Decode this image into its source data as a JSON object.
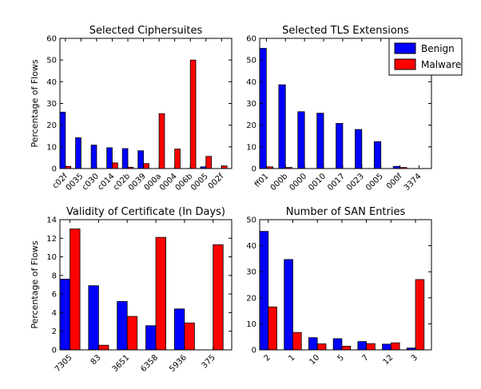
{
  "legend": {
    "benign": "Benign",
    "malware": "Malware"
  },
  "colors": {
    "benign": "#0000ff",
    "malware": "#ff0000"
  },
  "chart_data": [
    {
      "type": "bar",
      "title": "Selected Ciphersuites",
      "ylabel": "Percentage of Flows",
      "ylim": [
        0,
        60
      ],
      "yticks": [
        "0",
        "10",
        "20",
        "30",
        "40",
        "50",
        "60"
      ],
      "categories": [
        "c02f",
        "0035",
        "c030",
        "c014",
        "c02b",
        "0039",
        "000a",
        "0004",
        "006b",
        "0005",
        "002f"
      ],
      "series": [
        {
          "name": "Benign",
          "values": [
            26,
            14.2,
            10.8,
            9.6,
            9.2,
            8.2,
            0,
            0,
            0,
            0.8,
            0
          ]
        },
        {
          "name": "Malware",
          "values": [
            1,
            0,
            0,
            2.6,
            0.6,
            2.3,
            25.3,
            9,
            50,
            5.6,
            1.2
          ]
        }
      ]
    },
    {
      "type": "bar",
      "title": "Selected TLS Extensions",
      "ylabel": "",
      "ylim": [
        0,
        60
      ],
      "yticks": [
        "0",
        "10",
        "20",
        "30",
        "40",
        "50",
        "60"
      ],
      "categories": [
        "ff01",
        "000b",
        "0000",
        "0010",
        "0017",
        "0023",
        "0005",
        "000f",
        "3374"
      ],
      "series": [
        {
          "name": "Benign",
          "values": [
            55.4,
            38.6,
            26.2,
            25.5,
            20.8,
            18,
            12.4,
            1,
            0
          ]
        },
        {
          "name": "Malware",
          "values": [
            0.8,
            0.5,
            0,
            0,
            0,
            0,
            0,
            0.5,
            0
          ]
        }
      ]
    },
    {
      "type": "bar",
      "title": "Validity of Certificate (In Days)",
      "ylabel": "Percentage of Flows",
      "ylim": [
        0,
        14
      ],
      "yticks": [
        "0",
        "2",
        "4",
        "6",
        "8",
        "10",
        "12",
        "14"
      ],
      "categories": [
        "7305",
        "83",
        "3651",
        "6358",
        "5936",
        "375"
      ],
      "series": [
        {
          "name": "Benign",
          "values": [
            7.6,
            6.9,
            5.2,
            2.6,
            4.4,
            0
          ]
        },
        {
          "name": "Malware",
          "values": [
            13,
            0.5,
            3.6,
            12.1,
            2.9,
            11.3
          ]
        }
      ]
    },
    {
      "type": "bar",
      "title": "Number of SAN Entries",
      "ylabel": "",
      "ylim": [
        0,
        50
      ],
      "yticks": [
        "0",
        "10",
        "20",
        "30",
        "40",
        "50"
      ],
      "categories": [
        "2",
        "1",
        "10",
        "5",
        "7",
        "12",
        "3"
      ],
      "series": [
        {
          "name": "Benign",
          "values": [
            45.5,
            34.7,
            4.7,
            4.3,
            3.2,
            2.2,
            0.7
          ]
        },
        {
          "name": "Malware",
          "values": [
            16.5,
            6.7,
            2.3,
            1.4,
            2.4,
            2.7,
            27
          ]
        }
      ]
    }
  ]
}
